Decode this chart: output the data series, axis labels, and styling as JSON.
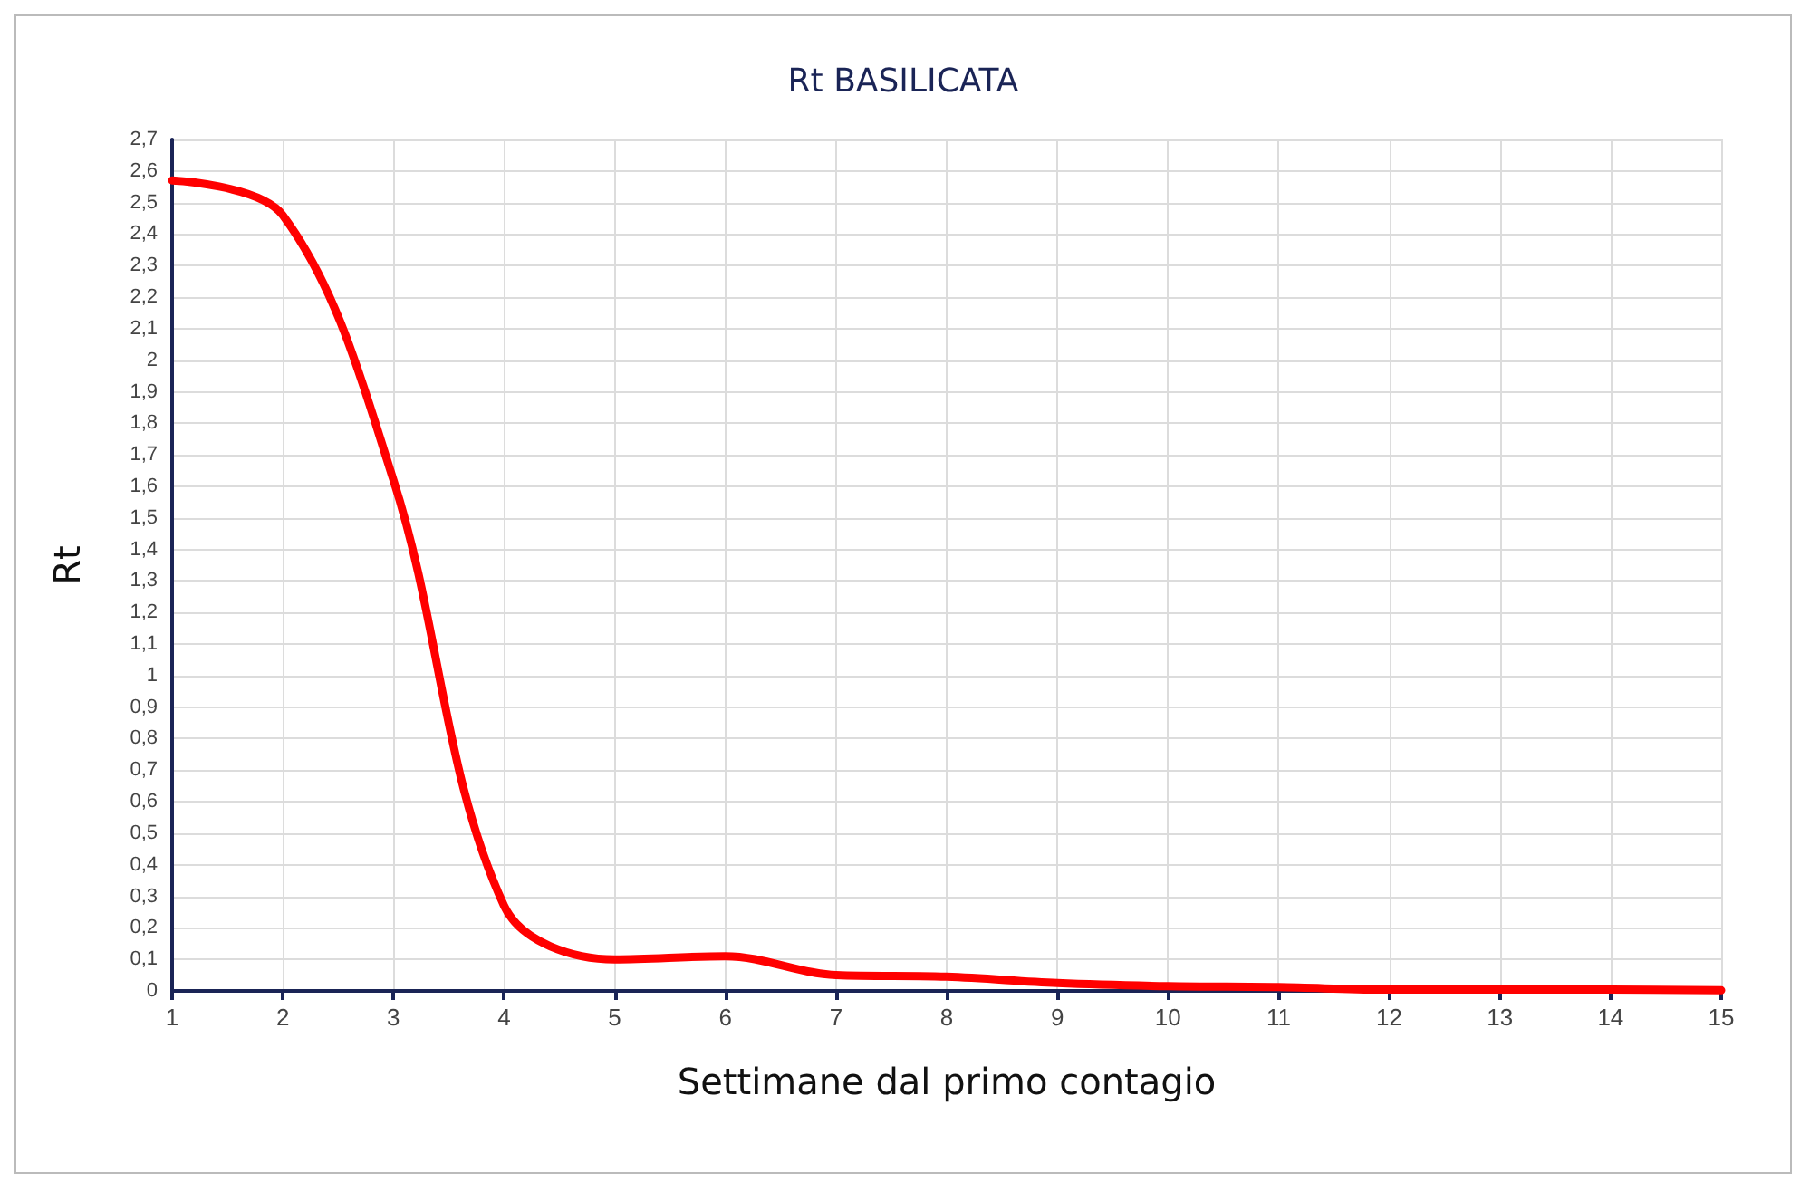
{
  "chart_data": {
    "type": "line",
    "title": "Rt BASILICATA",
    "xlabel": "Settimane dal primo contagio",
    "ylabel": "Rt",
    "x": [
      1,
      2,
      3,
      4,
      5,
      6,
      7,
      8,
      9,
      10,
      11,
      12,
      13,
      14,
      15
    ],
    "series": [
      {
        "color": "#ff0000",
        "values": [
          2.57,
          2.46,
          1.62,
          0.27,
          0.1,
          0.11,
          0.05,
          0.045,
          0.025,
          0.015,
          0.012,
          0.004,
          0.004,
          0.004,
          0.002
        ]
      }
    ],
    "xlim": [
      1,
      15
    ],
    "xticks": [
      1,
      2,
      3,
      4,
      5,
      6,
      7,
      8,
      9,
      10,
      11,
      12,
      13,
      14,
      15
    ],
    "ylim": [
      0,
      2.7
    ],
    "yticks": [
      0,
      {
        "value": 0.1,
        "label": "0,1"
      },
      {
        "value": 0.2,
        "label": "0,2"
      },
      {
        "value": 0.3,
        "label": "0,3"
      },
      {
        "value": 0.4,
        "label": "0,4"
      },
      {
        "value": 0.5,
        "label": "0,5"
      },
      {
        "value": 0.6,
        "label": "0,6"
      },
      {
        "value": 0.7,
        "label": "0,7"
      },
      {
        "value": 0.8,
        "label": "0,8"
      },
      {
        "value": 0.9,
        "label": "0,9"
      },
      1,
      {
        "value": 1.1,
        "label": "1,1"
      },
      {
        "value": 1.2,
        "label": "1,2"
      },
      {
        "value": 1.3,
        "label": "1,3"
      },
      {
        "value": 1.4,
        "label": "1,4"
      },
      {
        "value": 1.5,
        "label": "1,5"
      },
      {
        "value": 1.6,
        "label": "1,6"
      },
      {
        "value": 1.7,
        "label": "1,7"
      },
      {
        "value": 1.8,
        "label": "1,8"
      },
      {
        "value": 1.9,
        "label": "1,9"
      },
      2,
      {
        "value": 2.1,
        "label": "2,1"
      },
      {
        "value": 2.2,
        "label": "2,2"
      },
      {
        "value": 2.3,
        "label": "2,3"
      },
      {
        "value": 2.4,
        "label": "2,4"
      },
      {
        "value": 2.5,
        "label": "2,5"
      },
      {
        "value": 2.6,
        "label": "2,6"
      },
      {
        "value": 2.7,
        "label": "2,7"
      }
    ],
    "grid": true,
    "marker": "none",
    "line_style": "solid"
  }
}
